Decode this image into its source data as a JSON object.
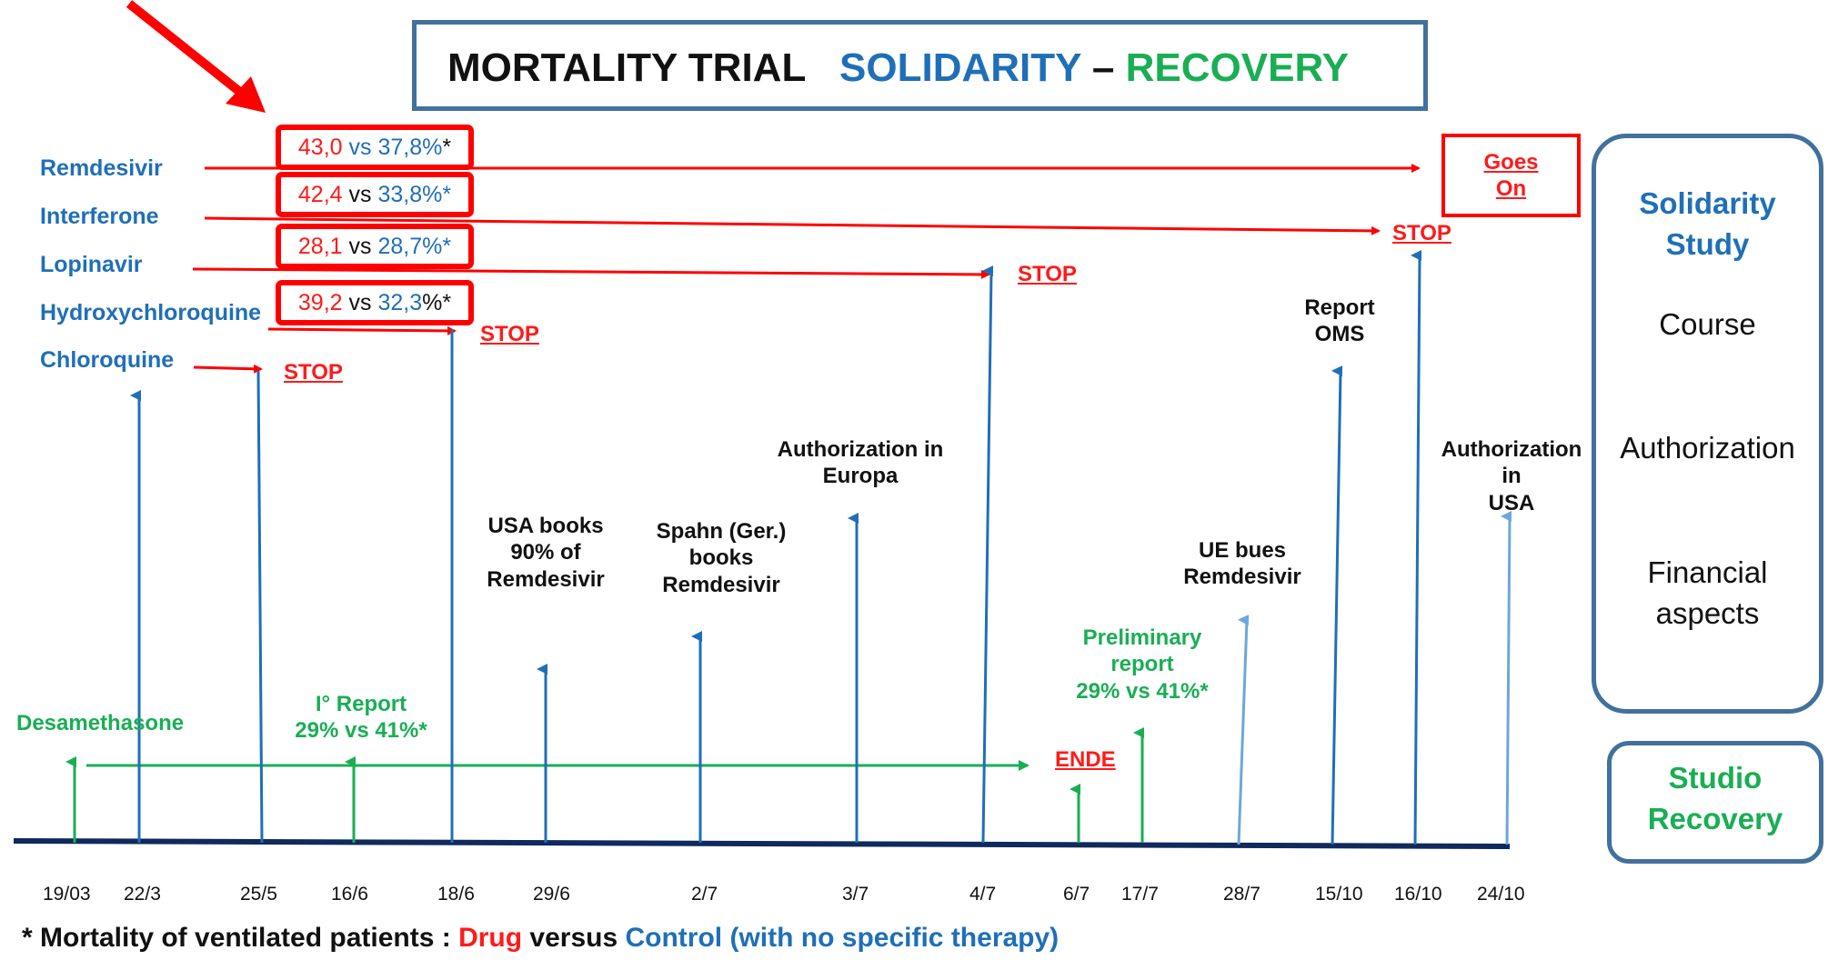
{
  "title": {
    "part1": "MORTALITY TRIAL",
    "part2": "SOLIDARITY",
    "sep": "–",
    "part3": "RECOVERY"
  },
  "drugs": [
    "Remdesivir",
    "Interferone",
    "Lopinavir",
    "Hydroxychloroquine",
    "Chloroquine"
  ],
  "mortality_boxes": [
    {
      "drug": "43,0",
      "vs": "vs",
      "control": "37,8%",
      "star": "*"
    },
    {
      "drug": "42,4",
      "vs": "vs",
      "control": "33,8%*",
      "star": ""
    },
    {
      "drug": "28,1",
      "vs": "vs",
      "control": "28,7%*",
      "star": ""
    },
    {
      "drug": "39,2",
      "vs": "vs",
      "control": "32,3",
      "star": "%*"
    }
  ],
  "goes_on": {
    "line1": "Goes",
    "line2": "On"
  },
  "stop_label": "STOP",
  "ende_label": "ENDE",
  "events": {
    "desamethasone": "Desamethasone",
    "first_report": {
      "line1": "I° Report",
      "line2": "29% vs 41%*"
    },
    "usa_books": {
      "line1": "USA books",
      "line2": "90% of",
      "line3": "Remdesivir"
    },
    "spahn": {
      "line1": "Spahn (Ger.)",
      "line2": "books",
      "line3": "Remdesivir"
    },
    "auth_europa": {
      "line1": "Authorization in",
      "line2": "Europa"
    },
    "preliminary": {
      "line1": "Preliminary",
      "line2": "report",
      "line3": "29% vs 41%*"
    },
    "ue_bues": {
      "line1": "UE bues",
      "line2": "Remdesivir"
    },
    "report_oms": {
      "line1": "Report",
      "line2": "OMS"
    },
    "auth_usa": {
      "line1": "Authorization",
      "line2": "in",
      "line3": "USA"
    }
  },
  "dates": [
    "19/03",
    "22/3",
    "25/5",
    "16/6",
    "18/6",
    "29/6",
    "2/7",
    "3/7",
    "4/7",
    "6/7",
    "17/7",
    "28/7",
    "15/10",
    "16/10",
    "24/10"
  ],
  "sidebar": {
    "solidarity": {
      "line1": "Solidarity",
      "line2": "Study"
    },
    "course": "Course",
    "authorization": "Authorization",
    "financial": {
      "line1": "Financial",
      "line2": "aspects"
    },
    "recovery": {
      "line1": "Studio",
      "line2": "Recovery"
    }
  },
  "footnote": {
    "prefix": "* Mortality of ventilated patients : ",
    "drug": "Drug",
    "mid": " versus ",
    "control": "Control (with no specific therapy)"
  },
  "colors": {
    "blue": "#1f6fb8",
    "red": "#ff0000",
    "green": "#1aae54",
    "navy": "#0f2a5c",
    "frame": "#41719c",
    "lightblue": "#6ea6dc"
  }
}
